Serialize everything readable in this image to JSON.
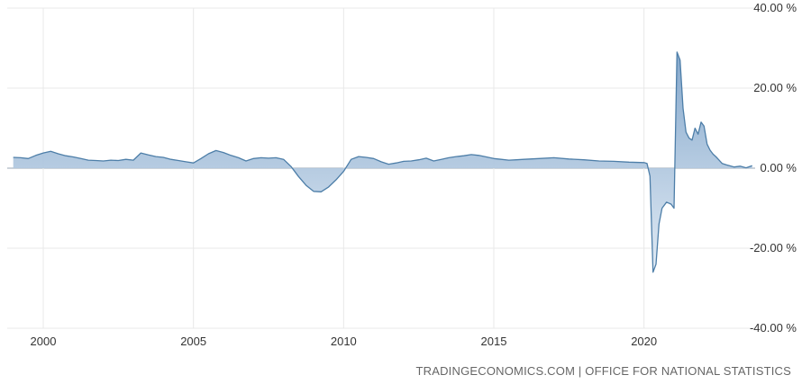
{
  "source_credit": "TRADINGECONOMICS.COM | OFFICE FOR NATIONAL STATISTICS",
  "colors": {
    "line": "#4d7ea8",
    "fill_top": "#7ea3c9",
    "fill_bottom": "#dde8f3",
    "grid": "#e8e8e8",
    "zero_line": "#9aa7b4"
  },
  "chart_data": {
    "type": "area",
    "title": "",
    "xlabel": "",
    "ylabel": "",
    "xlim": [
      1998.8,
      2023.7
    ],
    "ylim": [
      -40,
      40
    ],
    "grid": true,
    "legend": "none",
    "x_ticks": [
      2000,
      2005,
      2010,
      2015,
      2020
    ],
    "x_tick_labels": [
      "2000",
      "2005",
      "2010",
      "2015",
      "2020"
    ],
    "y_ticks": [
      40,
      20,
      0,
      -20,
      -40
    ],
    "y_tick_labels": [
      "40.00 %",
      "20.00 %",
      "0.00 %",
      "-20.00 %",
      "-40.00 %"
    ],
    "series": [
      {
        "x": [
          1999.0,
          1999.25,
          1999.5,
          1999.75,
          2000.0,
          2000.25,
          2000.5,
          2000.75,
          2001.0,
          2001.25,
          2001.5,
          2001.75,
          2002.0,
          2002.25,
          2002.5,
          2002.75,
          2003.0,
          2003.25,
          2003.5,
          2003.75,
          2004.0,
          2004.25,
          2004.5,
          2004.75,
          2005.0,
          2005.25,
          2005.5,
          2005.75,
          2006.0,
          2006.25,
          2006.5,
          2006.75,
          2007.0,
          2007.25,
          2007.5,
          2007.75,
          2008.0,
          2008.25,
          2008.5,
          2008.75,
          2009.0,
          2009.25,
          2009.5,
          2009.75,
          2010.0,
          2010.25,
          2010.5,
          2010.75,
          2011.0,
          2011.25,
          2011.5,
          2011.75,
          2012.0,
          2012.25,
          2012.5,
          2012.75,
          2013.0,
          2013.25,
          2013.5,
          2013.75,
          2014.0,
          2014.25,
          2014.5,
          2014.75,
          2015.0,
          2015.25,
          2015.5,
          2015.75,
          2016.0,
          2016.5,
          2017.0,
          2017.5,
          2018.0,
          2018.5,
          2019.0,
          2019.5,
          2020.0,
          2020.1,
          2020.2,
          2020.3,
          2020.4,
          2020.5,
          2020.6,
          2020.75,
          2020.9,
          2021.0,
          2021.1,
          2021.2,
          2021.3,
          2021.4,
          2021.5,
          2021.6,
          2021.7,
          2021.8,
          2021.9,
          2022.0,
          2022.1,
          2022.2,
          2022.3,
          2022.4,
          2022.5,
          2022.6,
          2022.75,
          2022.9,
          2023.0,
          2023.2,
          2023.4,
          2023.6
        ],
        "y": [
          2.7,
          2.6,
          2.4,
          3.2,
          3.8,
          4.2,
          3.6,
          3.1,
          2.8,
          2.4,
          2.0,
          1.9,
          1.8,
          2.0,
          1.9,
          2.2,
          2.0,
          3.8,
          3.3,
          2.9,
          2.7,
          2.2,
          1.9,
          1.6,
          1.3,
          2.4,
          3.6,
          4.4,
          3.9,
          3.2,
          2.6,
          1.8,
          2.4,
          2.6,
          2.5,
          2.6,
          2.2,
          0.4,
          -2.1,
          -4.3,
          -5.8,
          -5.9,
          -4.7,
          -2.9,
          -0.8,
          2.2,
          2.9,
          2.7,
          2.4,
          1.6,
          1.0,
          1.3,
          1.7,
          1.8,
          2.1,
          2.5,
          1.8,
          2.2,
          2.6,
          2.9,
          3.1,
          3.4,
          3.2,
          2.8,
          2.4,
          2.2,
          2.0,
          2.1,
          2.2,
          2.4,
          2.6,
          2.3,
          2.1,
          1.8,
          1.7,
          1.5,
          1.4,
          1.2,
          -2.0,
          -26.0,
          -24.0,
          -14.0,
          -10.0,
          -8.5,
          -9.0,
          -10.0,
          29.0,
          27.0,
          15.0,
          9.0,
          7.5,
          7.0,
          10.0,
          8.5,
          11.5,
          10.5,
          6.0,
          4.5,
          3.5,
          2.8,
          2.0,
          1.2,
          0.8,
          0.5,
          0.3,
          0.5,
          0.1,
          0.6
        ]
      }
    ]
  }
}
